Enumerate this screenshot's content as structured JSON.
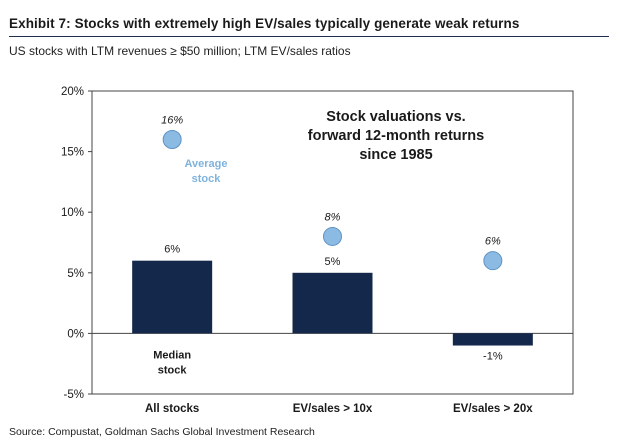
{
  "header": {
    "title": "Exhibit 7: Stocks with extremely high EV/sales typically generate weak returns",
    "subtitle": "US stocks with LTM revenues ≥ $50 million; LTM EV/sales ratios"
  },
  "footer": {
    "source": "Source: Compustat, Goldman Sachs Global Investment Research"
  },
  "annotations": {
    "main": [
      "Stock valuations vs.",
      "forward 12-month returns",
      "since 1985"
    ],
    "average": [
      "Average",
      "stock"
    ],
    "median": [
      "Median",
      "stock"
    ]
  },
  "colors": {
    "bar": "#13284a",
    "dot": "#8bbbe3",
    "dot_stroke": "#5e93c4",
    "frame": "#444444",
    "title_rule": "#1f2d4d"
  },
  "chart_data": {
    "type": "bar",
    "title": "Stock valuations vs. forward 12-month returns since 1985",
    "categories": [
      "All stocks",
      "EV/sales > 10x",
      "EV/sales > 20x"
    ],
    "series": [
      {
        "name": "Median stock",
        "kind": "bar",
        "values": [
          6,
          5,
          -1
        ],
        "labels": [
          "6%",
          "5%",
          "-1%"
        ]
      },
      {
        "name": "Average stock",
        "kind": "dot",
        "values": [
          16,
          8,
          6
        ],
        "labels": [
          "16%",
          "8%",
          "6%"
        ]
      }
    ],
    "ylim": [
      -5,
      20
    ],
    "yticks": [
      -5,
      0,
      5,
      10,
      15,
      20
    ],
    "ytick_labels": [
      "-5%",
      "0%",
      "5%",
      "10%",
      "15%",
      "20%"
    ],
    "xlabel": "",
    "ylabel": "",
    "grid": false
  }
}
